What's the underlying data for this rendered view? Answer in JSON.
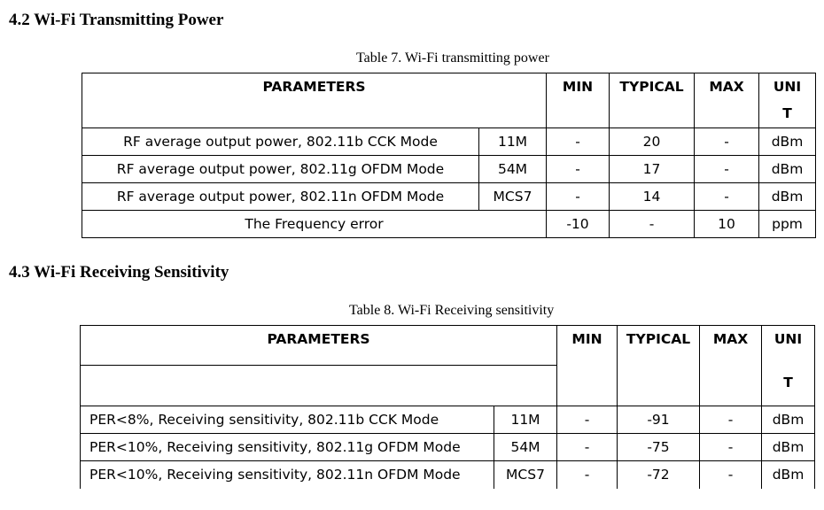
{
  "section1": {
    "heading": "4.2 Wi-Fi Transmitting Power",
    "caption": "Table 7. Wi-Fi transmitting power",
    "headers": {
      "parameters": "PARAMETERS",
      "min": "MIN",
      "typical": "TYPICAL",
      "max": "MAX",
      "unit_line1": "UNI",
      "unit_line2": "T"
    },
    "rows": [
      {
        "param": "RF average output power, 802.11b CCK Mode",
        "rate": "11M",
        "min": "-",
        "typical": "20",
        "max": "-",
        "unit": "dBm"
      },
      {
        "param": "RF average output power, 802.11g OFDM Mode",
        "rate": "54M",
        "min": "-",
        "typical": "17",
        "max": "-",
        "unit": "dBm"
      },
      {
        "param": "RF average output power, 802.11n OFDM Mode",
        "rate": "MCS7",
        "min": "-",
        "typical": "14",
        "max": "-",
        "unit": "dBm"
      }
    ],
    "freq_row": {
      "param": "The Frequency error",
      "min": "-10",
      "typical": "-",
      "max": "10",
      "unit": "ppm"
    }
  },
  "section2": {
    "heading": "4.3 Wi-Fi Receiving Sensitivity",
    "caption": "Table 8. Wi-Fi Receiving sensitivity",
    "headers": {
      "parameters": "PARAMETERS",
      "min": "MIN",
      "typical": "TYPICAL",
      "max": "MAX",
      "unit_line1": "UNI",
      "unit_line2": "T"
    },
    "rows": [
      {
        "param": "PER<8%, Receiving sensitivity, 802.11b CCK Mode",
        "rate": "11M",
        "min": "-",
        "typical": "-91",
        "max": "-",
        "unit": "dBm"
      },
      {
        "param": "PER<10%, Receiving sensitivity, 802.11g OFDM Mode",
        "rate": "54M",
        "min": "-",
        "typical": "-75",
        "max": "-",
        "unit": "dBm"
      },
      {
        "param": "PER<10%, Receiving sensitivity, 802.11n OFDM Mode",
        "rate": "MCS7",
        "min": "-",
        "typical": "-72",
        "max": "-",
        "unit": "dBm"
      }
    ]
  }
}
